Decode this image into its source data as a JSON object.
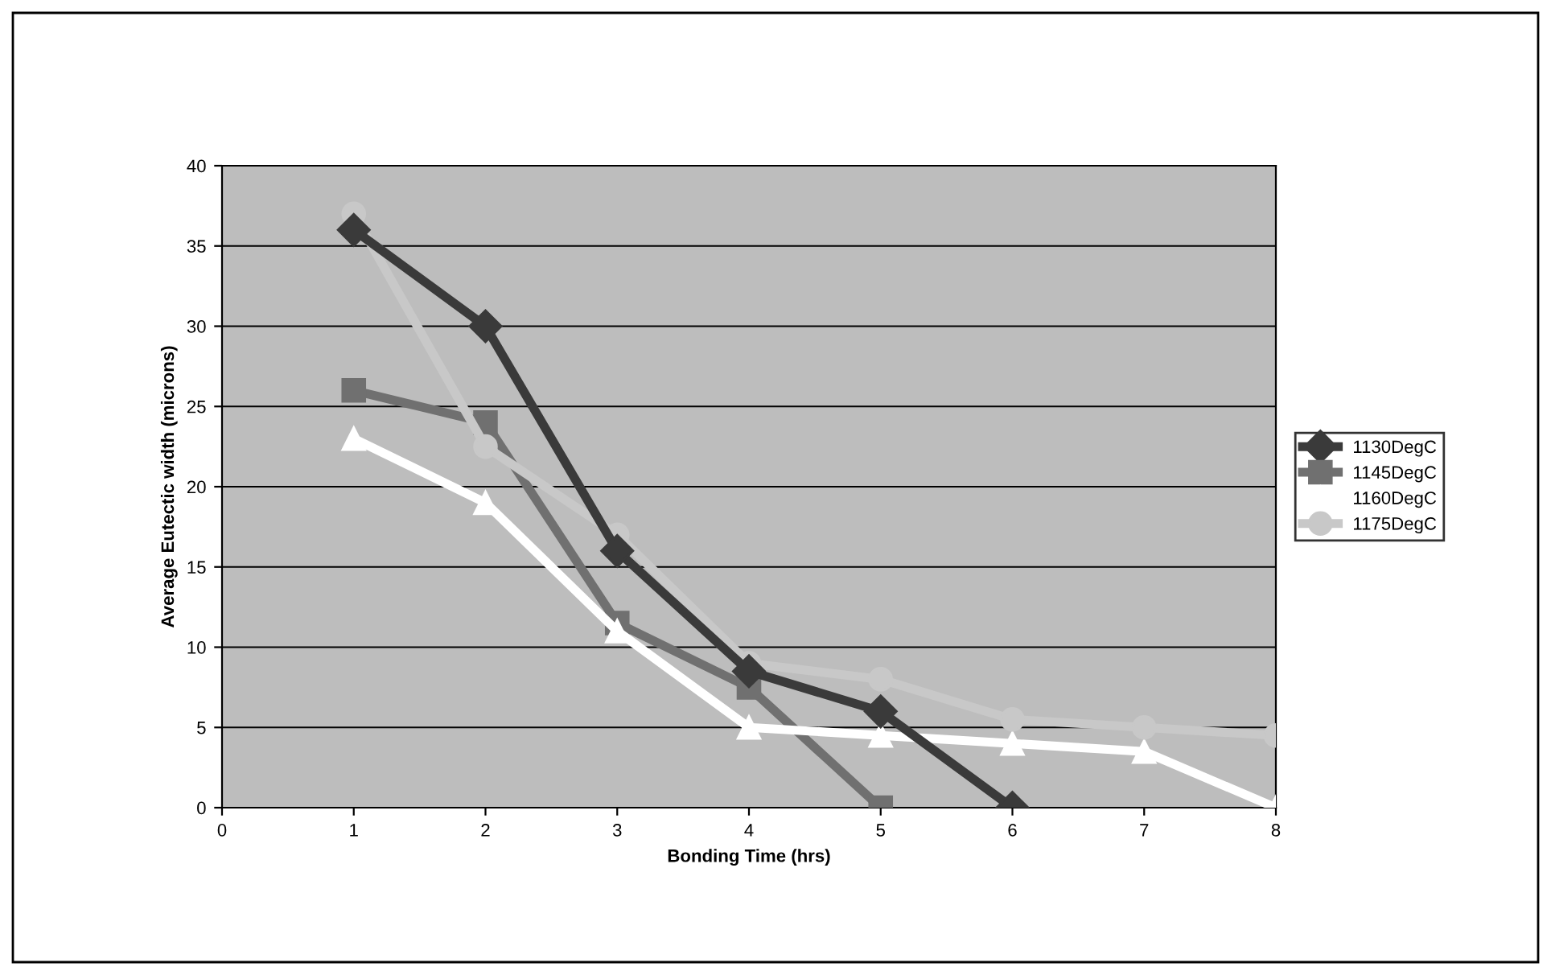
{
  "chart_data": {
    "type": "line",
    "xlabel": "Bonding Time (hrs)",
    "ylabel": "Average Eutectic width (microns)",
    "x": [
      1,
      2,
      3,
      4,
      5,
      6,
      7,
      8
    ],
    "xlim": [
      0,
      8
    ],
    "xticks": [
      0,
      1,
      2,
      3,
      4,
      5,
      6,
      7,
      8
    ],
    "ylim": [
      0,
      40
    ],
    "yticks": [
      0,
      5,
      10,
      15,
      20,
      25,
      30,
      35,
      40
    ],
    "grid": "y",
    "legend": "right",
    "series": [
      {
        "name": "1130DegC",
        "color": "#3a3a3a",
        "marker": "diamond",
        "values": [
          36,
          30,
          16,
          8.5,
          6,
          0,
          null,
          null
        ]
      },
      {
        "name": "1145DegC",
        "color": "#707070",
        "marker": "square",
        "values": [
          26,
          24,
          11.5,
          7.5,
          0,
          null,
          null,
          null
        ]
      },
      {
        "name": "1160DegC",
        "color": "#ffffff",
        "marker": "triangle",
        "values": [
          23,
          19,
          11,
          5,
          4.5,
          4,
          3.5,
          0
        ]
      },
      {
        "name": "1175DegC",
        "color": "#c8c8c8",
        "marker": "circle",
        "values": [
          37,
          22.5,
          17,
          9,
          8,
          5.5,
          5,
          4.5
        ]
      }
    ]
  }
}
